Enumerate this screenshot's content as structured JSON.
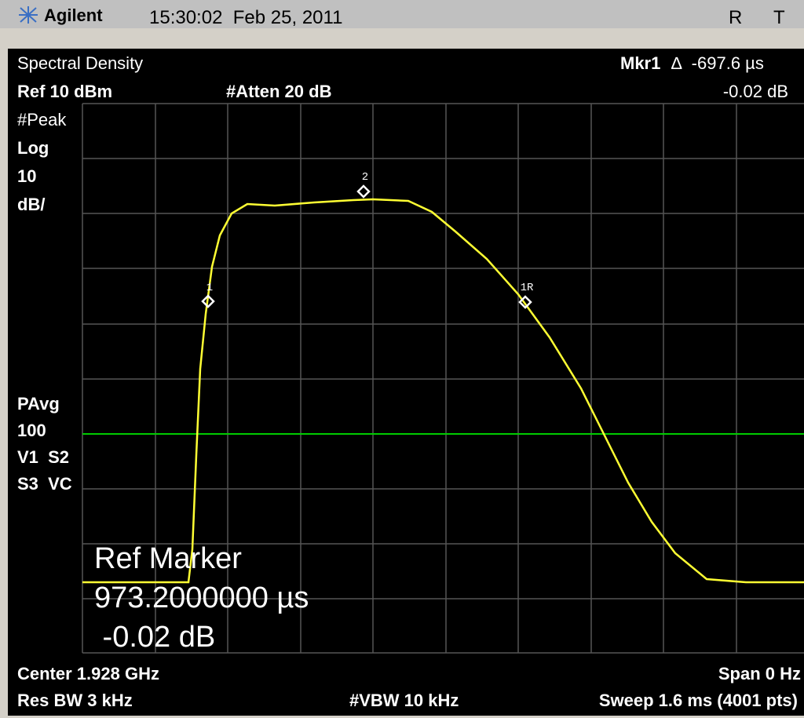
{
  "header": {
    "brand": "Agilent",
    "timestamp": "15:30:02  Feb 25, 2011",
    "status": [
      "R",
      "T"
    ]
  },
  "display": {
    "title": "Spectral Density",
    "marker_readout": {
      "name": "Mkr1",
      "delta": "∆  -697.6 µs",
      "level": "-0.02 dB"
    },
    "ref_level": "Ref 10 dBm",
    "attenuation": "#Atten 20 dB",
    "left_labels": [
      "#Peak",
      "Log",
      "10",
      "dB/",
      "PAvg",
      "100",
      "V1  S2",
      "S3  VC"
    ],
    "markers": [
      "1",
      "2",
      "1R"
    ],
    "annotation": [
      "Ref Marker",
      "973.2000000 µs",
      " -0.02 dB"
    ],
    "footer": {
      "center": "Center 1.928 GHz",
      "span": "Span 0 Hz",
      "res_bw": "Res BW 3 kHz",
      "vbw": "#VBW 10 kHz",
      "sweep": "Sweep 1.6 ms (4001 pts)"
    }
  }
}
